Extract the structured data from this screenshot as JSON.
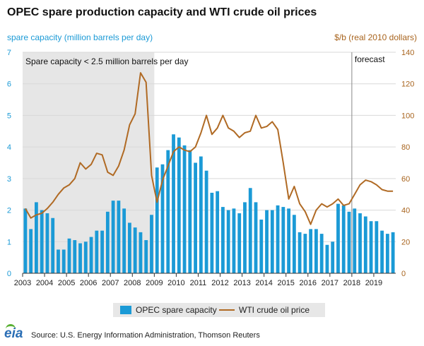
{
  "title": "OPEC spare production capacity and WTI crude oil prices",
  "left_axis_label": "spare capacity (million barrels per day)",
  "right_axis_label": "$/b (real 2010 dollars)",
  "legend": {
    "bars": "OPEC spare capacity",
    "line": "WTI crude oil price"
  },
  "source": "Source: U.S. Energy Information Administration, Thomson Reuters",
  "logo": "eia",
  "colors": {
    "bars": "#1b9ad6",
    "line": "#b06a24",
    "shade": "#e6e6e6"
  },
  "chart_data": {
    "type": "bar",
    "x_ticks": [
      "2003",
      "2004",
      "2005",
      "2006",
      "2007",
      "2008",
      "2009",
      "2010",
      "2011",
      "2012",
      "2013",
      "2014",
      "2015",
      "2016",
      "2017",
      "2018",
      "2019"
    ],
    "x_range": [
      2003,
      2020
    ],
    "left_ylim": [
      0,
      7
    ],
    "left_yticks": [
      "0",
      "1",
      "2",
      "3",
      "4",
      "5",
      "6",
      "7"
    ],
    "right_ylim": [
      0,
      140
    ],
    "right_yticks": [
      "0",
      "20",
      "40",
      "60",
      "80",
      "100",
      "120",
      "140"
    ],
    "annotations": {
      "shaded_region_label": "Spare capacity < 2.5 million barrels per day",
      "shaded_region_x": [
        2003,
        2009
      ],
      "forecast_label": "forecast",
      "forecast_start_x": 2018
    },
    "series": [
      {
        "name": "OPEC spare capacity",
        "type": "bar",
        "axis": "left",
        "x": [
          2003.125,
          2003.375,
          2003.625,
          2003.875,
          2004.125,
          2004.375,
          2004.625,
          2004.875,
          2005.125,
          2005.375,
          2005.625,
          2005.875,
          2006.125,
          2006.375,
          2006.625,
          2006.875,
          2007.125,
          2007.375,
          2007.625,
          2007.875,
          2008.125,
          2008.375,
          2008.625,
          2008.875,
          2009.125,
          2009.375,
          2009.625,
          2009.875,
          2010.125,
          2010.375,
          2010.625,
          2010.875,
          2011.125,
          2011.375,
          2011.625,
          2011.875,
          2012.125,
          2012.375,
          2012.625,
          2012.875,
          2013.125,
          2013.375,
          2013.625,
          2013.875,
          2014.125,
          2014.375,
          2014.625,
          2014.875,
          2015.125,
          2015.375,
          2015.625,
          2015.875,
          2016.125,
          2016.375,
          2016.625,
          2016.875,
          2017.125,
          2017.375,
          2017.625,
          2017.875,
          2018.125,
          2018.375,
          2018.625,
          2018.875,
          2019.125,
          2019.375,
          2019.625,
          2019.875
        ],
        "values": [
          2.05,
          1.4,
          2.25,
          2.0,
          1.9,
          1.75,
          0.75,
          0.75,
          1.1,
          1.05,
          0.95,
          1.0,
          1.15,
          1.35,
          1.35,
          1.95,
          2.3,
          2.3,
          2.05,
          1.6,
          1.45,
          1.3,
          1.05,
          1.85,
          3.35,
          3.45,
          3.9,
          4.4,
          4.3,
          4.05,
          3.9,
          3.5,
          3.7,
          3.25,
          2.55,
          2.6,
          2.1,
          2.0,
          2.05,
          1.9,
          2.25,
          2.7,
          2.25,
          1.7,
          2.0,
          2.0,
          2.15,
          2.1,
          2.05,
          1.85,
          1.3,
          1.25,
          1.4,
          1.4,
          1.25,
          0.9,
          1.0,
          2.2,
          2.15,
          1.95,
          2.05,
          1.9,
          1.8,
          1.65,
          1.65,
          1.35,
          1.25,
          1.3
        ]
      },
      {
        "name": "WTI crude oil price",
        "type": "line",
        "axis": "right",
        "x": [
          2003.125,
          2003.375,
          2003.625,
          2003.875,
          2004.125,
          2004.375,
          2004.625,
          2004.875,
          2005.125,
          2005.375,
          2005.625,
          2005.875,
          2006.125,
          2006.375,
          2006.625,
          2006.875,
          2007.125,
          2007.375,
          2007.625,
          2007.875,
          2008.125,
          2008.375,
          2008.625,
          2008.875,
          2009.125,
          2009.375,
          2009.625,
          2009.875,
          2010.125,
          2010.375,
          2010.625,
          2010.875,
          2011.125,
          2011.375,
          2011.625,
          2011.875,
          2012.125,
          2012.375,
          2012.625,
          2012.875,
          2013.125,
          2013.375,
          2013.625,
          2013.875,
          2014.125,
          2014.375,
          2014.625,
          2014.875,
          2015.125,
          2015.375,
          2015.625,
          2015.875,
          2016.125,
          2016.375,
          2016.625,
          2016.875,
          2017.125,
          2017.375,
          2017.625,
          2017.875,
          2018.125,
          2018.375,
          2018.625,
          2018.875,
          2019.125,
          2019.375,
          2019.625,
          2019.875
        ],
        "values": [
          41,
          35,
          37,
          38,
          41,
          45,
          50,
          54,
          56,
          60,
          70,
          66,
          69,
          76,
          75,
          64,
          62,
          68,
          78,
          94,
          101,
          127,
          121,
          62,
          45,
          59,
          68,
          77,
          80,
          78,
          77,
          80,
          89,
          100,
          88,
          92,
          100,
          92,
          90,
          86,
          89,
          90,
          100,
          92,
          93,
          96,
          91,
          70,
          47,
          55,
          44,
          39,
          31,
          40,
          44,
          42,
          44,
          47,
          43,
          44,
          50,
          56,
          59,
          58,
          56,
          53,
          52,
          52
        ]
      }
    ]
  }
}
